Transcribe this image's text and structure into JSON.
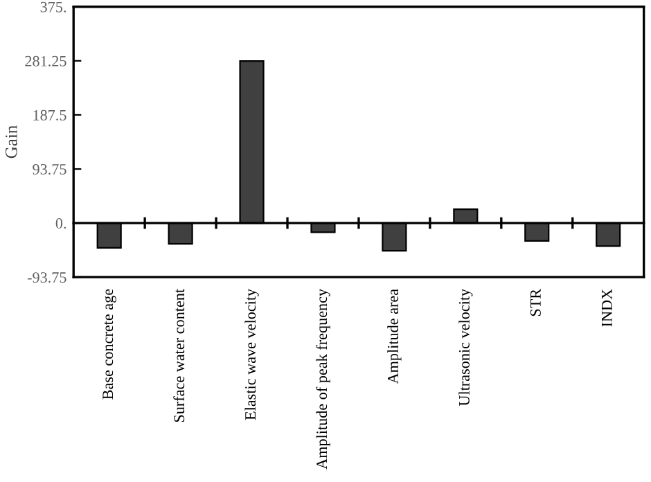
{
  "chart_data": {
    "type": "bar",
    "ylabel": "Gain",
    "categories": [
      "Base concrete age",
      "Surface water content",
      "Elastic wave velocity",
      "Amplitude of peak frequency",
      "Amplitude area",
      "Ultrasonic velocity",
      "STR",
      "INDX"
    ],
    "values": [
      -43,
      -36,
      281,
      -16,
      -48,
      24,
      -31,
      -40
    ],
    "color": "#404040",
    "ylim": [
      -93.75,
      375
    ],
    "yticks": [
      {
        "value": -93.75,
        "label": "-93.75"
      },
      {
        "value": 0,
        "label": "0."
      },
      93.75,
      187.5,
      281.25,
      {
        "value": 375,
        "label": "375."
      }
    ]
  }
}
